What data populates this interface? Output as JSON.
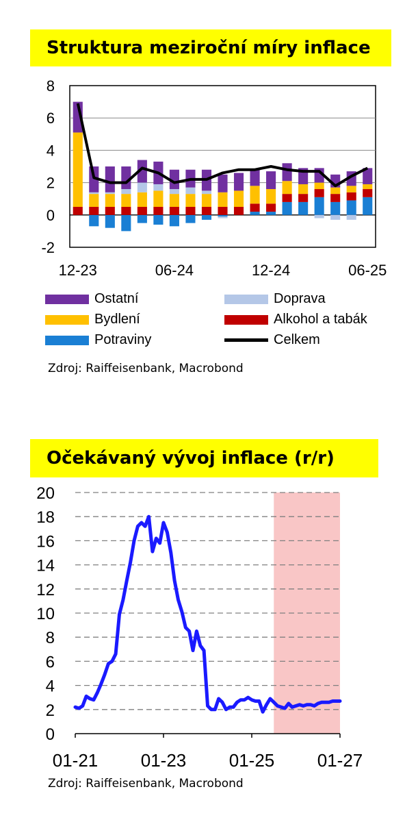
{
  "chart1": {
    "title": "Struktura meziroční míry inflace",
    "source": "Zdroj: Raiffeisenbank, Macrobond",
    "legend": {
      "ostatni": "Ostatní",
      "doprava": "Doprava",
      "bydleni": "Bydlení",
      "alkohol": "Alkohol a tabák",
      "potraviny": "Potraviny",
      "celkem": "Celkem"
    }
  },
  "chart2": {
    "title": "Očekávaný vývoj inflace (r/r)",
    "source": "Zdroj: Raiffeisenbank, Macrobond"
  },
  "chart_data": [
    {
      "type": "bar",
      "stacked": true,
      "title": "Struktura meziroční míry inflace",
      "x_tick_labels": [
        "12-23",
        "06-24",
        "12-24",
        "06-25"
      ],
      "categories": [
        "2023-12",
        "2024-01",
        "2024-02",
        "2024-03",
        "2024-04",
        "2024-05",
        "2024-06",
        "2024-07",
        "2024-08",
        "2024-09",
        "2024-10",
        "2024-11",
        "2024-12",
        "2025-01",
        "2025-02",
        "2025-03",
        "2025-04",
        "2025-05",
        "2025-06"
      ],
      "ylim": [
        -2,
        8
      ],
      "yticks": [
        -2,
        0,
        2,
        4,
        6,
        8
      ],
      "grid": true,
      "legend_position": "bottom",
      "colors": {
        "Potraviny": "#1a7fd4",
        "Alkohol a tabák": "#c00000",
        "Bydlení": "#ffc000",
        "Doprava": "#b4c7e7",
        "Ostatní": "#7030a0",
        "Celkem": "#000000"
      },
      "series": [
        {
          "name": "Potraviny",
          "values": [
            0.0,
            -0.7,
            -0.8,
            -1.0,
            -0.5,
            -0.6,
            -0.7,
            -0.5,
            -0.3,
            -0.1,
            0.0,
            0.2,
            0.2,
            0.8,
            0.8,
            1.1,
            0.8,
            0.9,
            1.1
          ]
        },
        {
          "name": "Alkohol a tabák",
          "values": [
            0.5,
            0.5,
            0.5,
            0.5,
            0.5,
            0.5,
            0.5,
            0.5,
            0.5,
            0.5,
            0.5,
            0.5,
            0.5,
            0.5,
            0.5,
            0.5,
            0.5,
            0.5,
            0.5
          ]
        },
        {
          "name": "Bydlení",
          "values": [
            4.6,
            0.8,
            0.8,
            0.8,
            0.9,
            1.0,
            0.8,
            0.8,
            0.8,
            0.9,
            1.0,
            1.1,
            0.9,
            0.8,
            0.6,
            0.4,
            0.4,
            0.4,
            0.3
          ]
        },
        {
          "name": "Doprava",
          "values": [
            0.0,
            0.1,
            0.1,
            0.3,
            0.6,
            0.4,
            0.3,
            0.4,
            0.2,
            -0.1,
            0.0,
            0.0,
            0.0,
            0.0,
            0.0,
            -0.2,
            -0.3,
            -0.3,
            0.0
          ]
        },
        {
          "name": "Ostatní",
          "values": [
            1.9,
            1.6,
            1.6,
            1.4,
            1.4,
            1.4,
            1.2,
            1.1,
            1.3,
            1.1,
            1.1,
            1.0,
            1.1,
            1.1,
            1.0,
            0.9,
            0.8,
            0.9,
            1.0
          ]
        },
        {
          "name": "Celkem",
          "type": "line",
          "values": [
            6.9,
            2.3,
            2.0,
            2.0,
            2.9,
            2.6,
            2.0,
            2.2,
            2.2,
            2.6,
            2.8,
            2.8,
            3.0,
            2.8,
            2.7,
            2.7,
            1.8,
            2.4,
            2.9
          ]
        }
      ]
    },
    {
      "type": "line",
      "title": "Očekávaný vývoj inflace (r/r)",
      "x_tick_labels": [
        "01-21",
        "01-23",
        "01-25",
        "01-27"
      ],
      "ylim": [
        0,
        20
      ],
      "yticks": [
        0,
        2,
        4,
        6,
        8,
        10,
        12,
        14,
        16,
        18,
        20
      ],
      "grid": "dashed",
      "forecast_shading": {
        "from": "2025-07",
        "to": "2027-01",
        "color": "#f9c6c6"
      },
      "line_color": "#1a1aff",
      "x_start": "2021-01",
      "series": [
        {
          "values": [
            2.2,
            2.1,
            2.3,
            3.1,
            2.9,
            2.8,
            3.4,
            4.1,
            4.9,
            5.8,
            6.0,
            6.6,
            9.9,
            11.1,
            12.7,
            14.2,
            16.0,
            17.2,
            17.5,
            17.2,
            18.0,
            15.1,
            16.2,
            15.8,
            17.5,
            16.7,
            15.0,
            12.7,
            11.1,
            10.1,
            8.8,
            8.5,
            6.9,
            8.5,
            7.3,
            6.9,
            2.3,
            2.0,
            2.0,
            2.9,
            2.6,
            2.0,
            2.2,
            2.2,
            2.6,
            2.8,
            2.8,
            3.0,
            2.8,
            2.7,
            2.7,
            1.8,
            2.4,
            2.9,
            2.6,
            2.3,
            2.2,
            2.1,
            2.5,
            2.2,
            2.3,
            2.4,
            2.3,
            2.4,
            2.4,
            2.3,
            2.5,
            2.6,
            2.6,
            2.6,
            2.7,
            2.7,
            2.7
          ]
        }
      ]
    }
  ]
}
